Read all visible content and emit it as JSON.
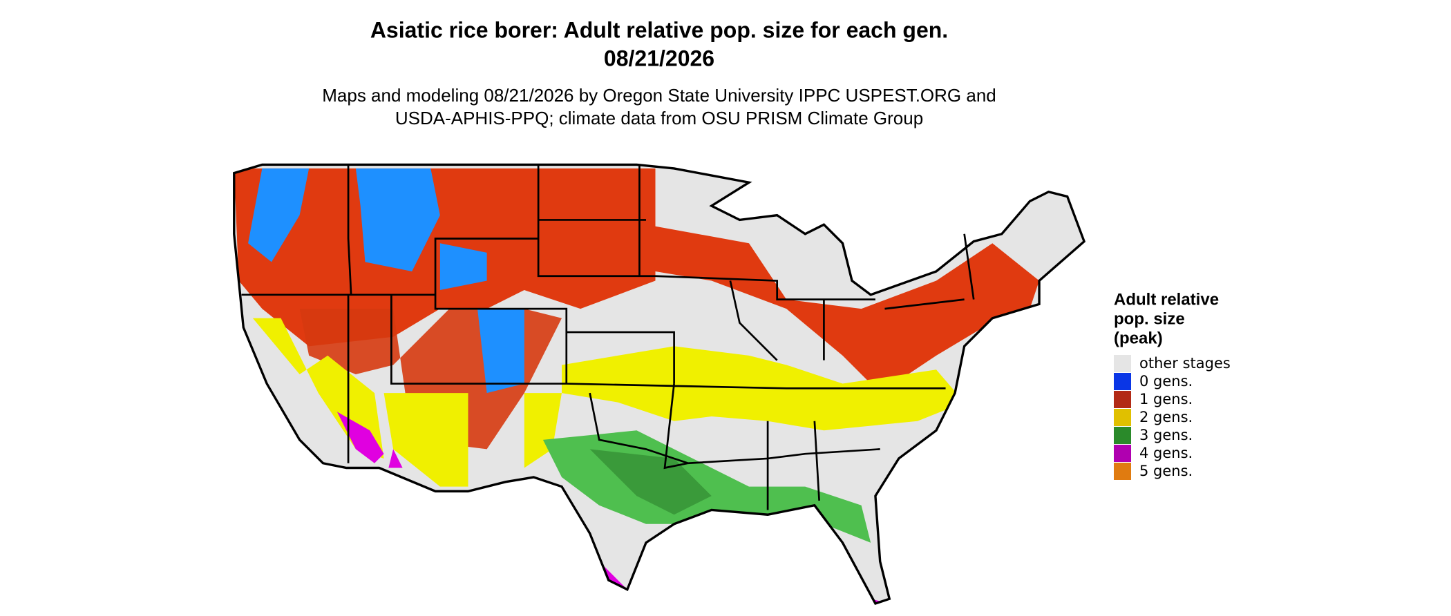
{
  "title": [
    "Asiatic rice borer: Adult relative pop. size for each gen.",
    "08/21/2026"
  ],
  "subtitle": [
    "Maps and modeling 08/21/2026 by Oregon State University IPPC USPEST.ORG and",
    "USDA-APHIS-PPQ; climate data from OSU PRISM Climate Group"
  ],
  "legend": {
    "title": [
      "Adult relative",
      "pop. size",
      "(peak)"
    ],
    "items": [
      {
        "label": "other stages",
        "color": "#e5e5e5"
      },
      {
        "label": "0 gens.",
        "color": "#0a36e6"
      },
      {
        "label": "1 gens.",
        "color": "#b22a16"
      },
      {
        "label": "2 gens.",
        "color": "#e0c000"
      },
      {
        "label": "3 gens.",
        "color": "#2a8a2a"
      },
      {
        "label": "4 gens.",
        "color": "#b000b0"
      },
      {
        "label": "5 gens.",
        "color": "#e07b10"
      }
    ]
  }
}
